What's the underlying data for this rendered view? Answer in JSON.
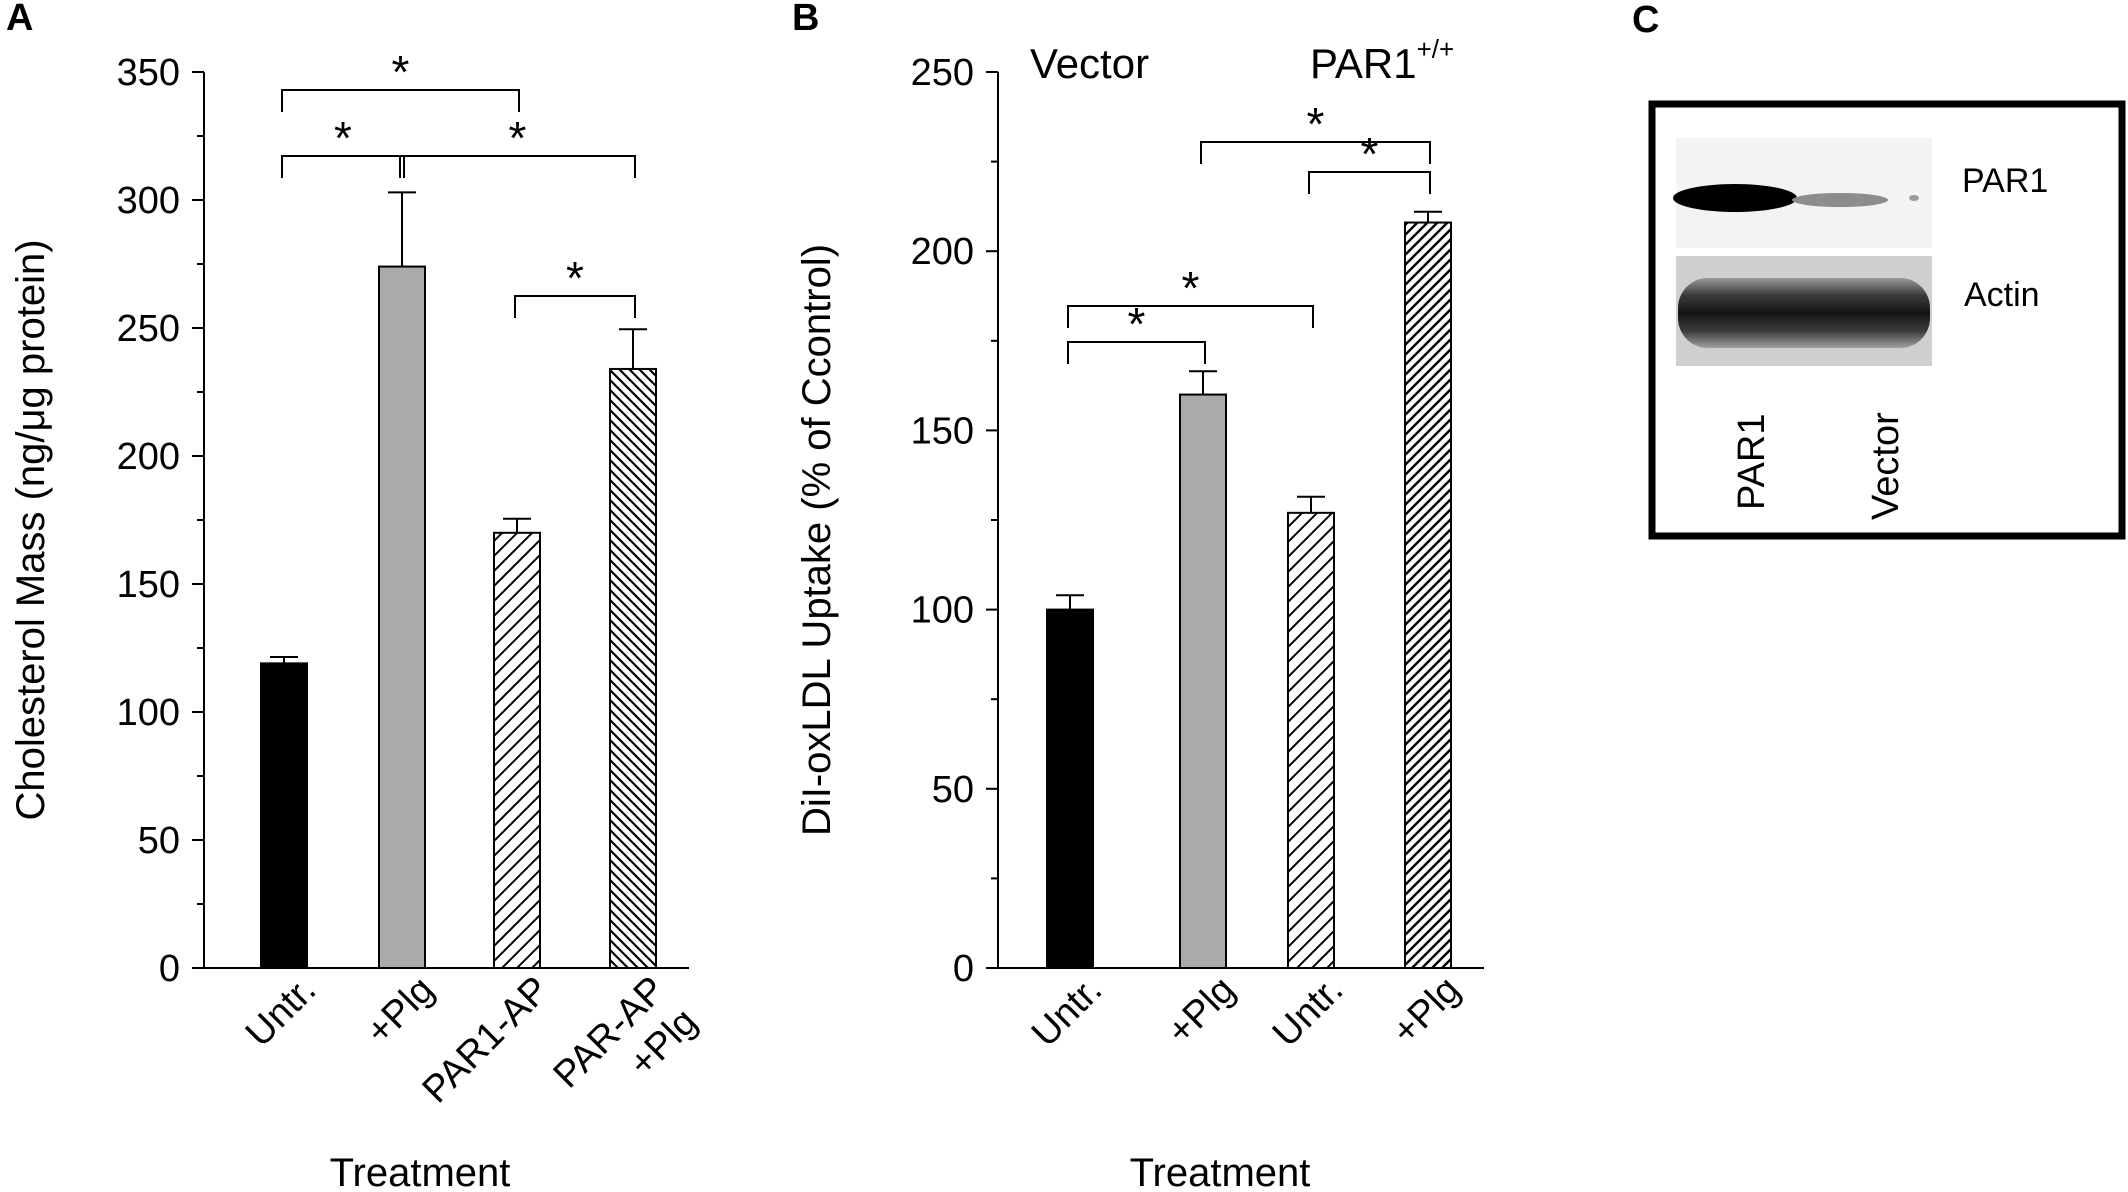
{
  "panels": {
    "a": "A",
    "b": "B",
    "c": "C"
  },
  "chart_data": [
    {
      "panel": "A",
      "type": "bar",
      "categories": [
        [
          "Untr."
        ],
        [
          "+Plg"
        ],
        [
          "PAR1-AP"
        ],
        [
          "PAR-AP",
          "+Plg"
        ]
      ],
      "values": [
        119,
        274,
        170,
        234
      ],
      "errors": [
        2.5,
        29,
        5.5,
        15.5
      ],
      "fills": [
        "solid-black",
        "solid-gray",
        "hatch-sparse",
        "hatch-dense"
      ],
      "bar_color": "#000000",
      "gray_color": "#aaaaaa",
      "xlabel": "Treatment",
      "ylabel": "Cholesterol Mass (ng/μg protein)",
      "ylim": [
        0,
        350
      ],
      "yticks": [
        0,
        50,
        100,
        150,
        200,
        250,
        300,
        350
      ],
      "significance": [
        {
          "from": 0,
          "to": 2,
          "label": "*"
        },
        {
          "from": 0,
          "to": 1,
          "label": "*"
        },
        {
          "from": 1,
          "to": 3,
          "label": "*"
        },
        {
          "from": 2,
          "to": 3,
          "label": "*"
        }
      ]
    },
    {
      "panel": "B",
      "type": "bar",
      "categories": [
        [
          "Untr."
        ],
        [
          "+Plg"
        ],
        [
          "Untr."
        ],
        [
          "+Plg"
        ]
      ],
      "values": [
        100,
        160,
        127,
        208
      ],
      "errors": [
        4,
        6.5,
        4.5,
        3
      ],
      "fills": [
        "solid-black",
        "solid-gray",
        "hatch-sparse",
        "hatch-dense"
      ],
      "group_labels": {
        "vector": "Vector",
        "par1": "PAR1",
        "par1_sup": "+/+"
      },
      "xlabel": "Treatment",
      "ylabel": "DiI-oxLDL Uptake (% of Ccontrol)",
      "ylim": [
        0,
        250
      ],
      "yticks": [
        0,
        50,
        100,
        150,
        200,
        250
      ],
      "significance": [
        {
          "from": 1,
          "to": 3,
          "label": "*"
        },
        {
          "from": 2,
          "to": 3,
          "label": "*"
        },
        {
          "from": 0,
          "to": 2,
          "label": "*"
        },
        {
          "from": 0,
          "to": 1,
          "label": "*"
        }
      ]
    }
  ],
  "blot": {
    "row_labels": [
      "PAR1",
      "Actin"
    ],
    "lane_labels": [
      "PAR1",
      "Vector"
    ]
  }
}
